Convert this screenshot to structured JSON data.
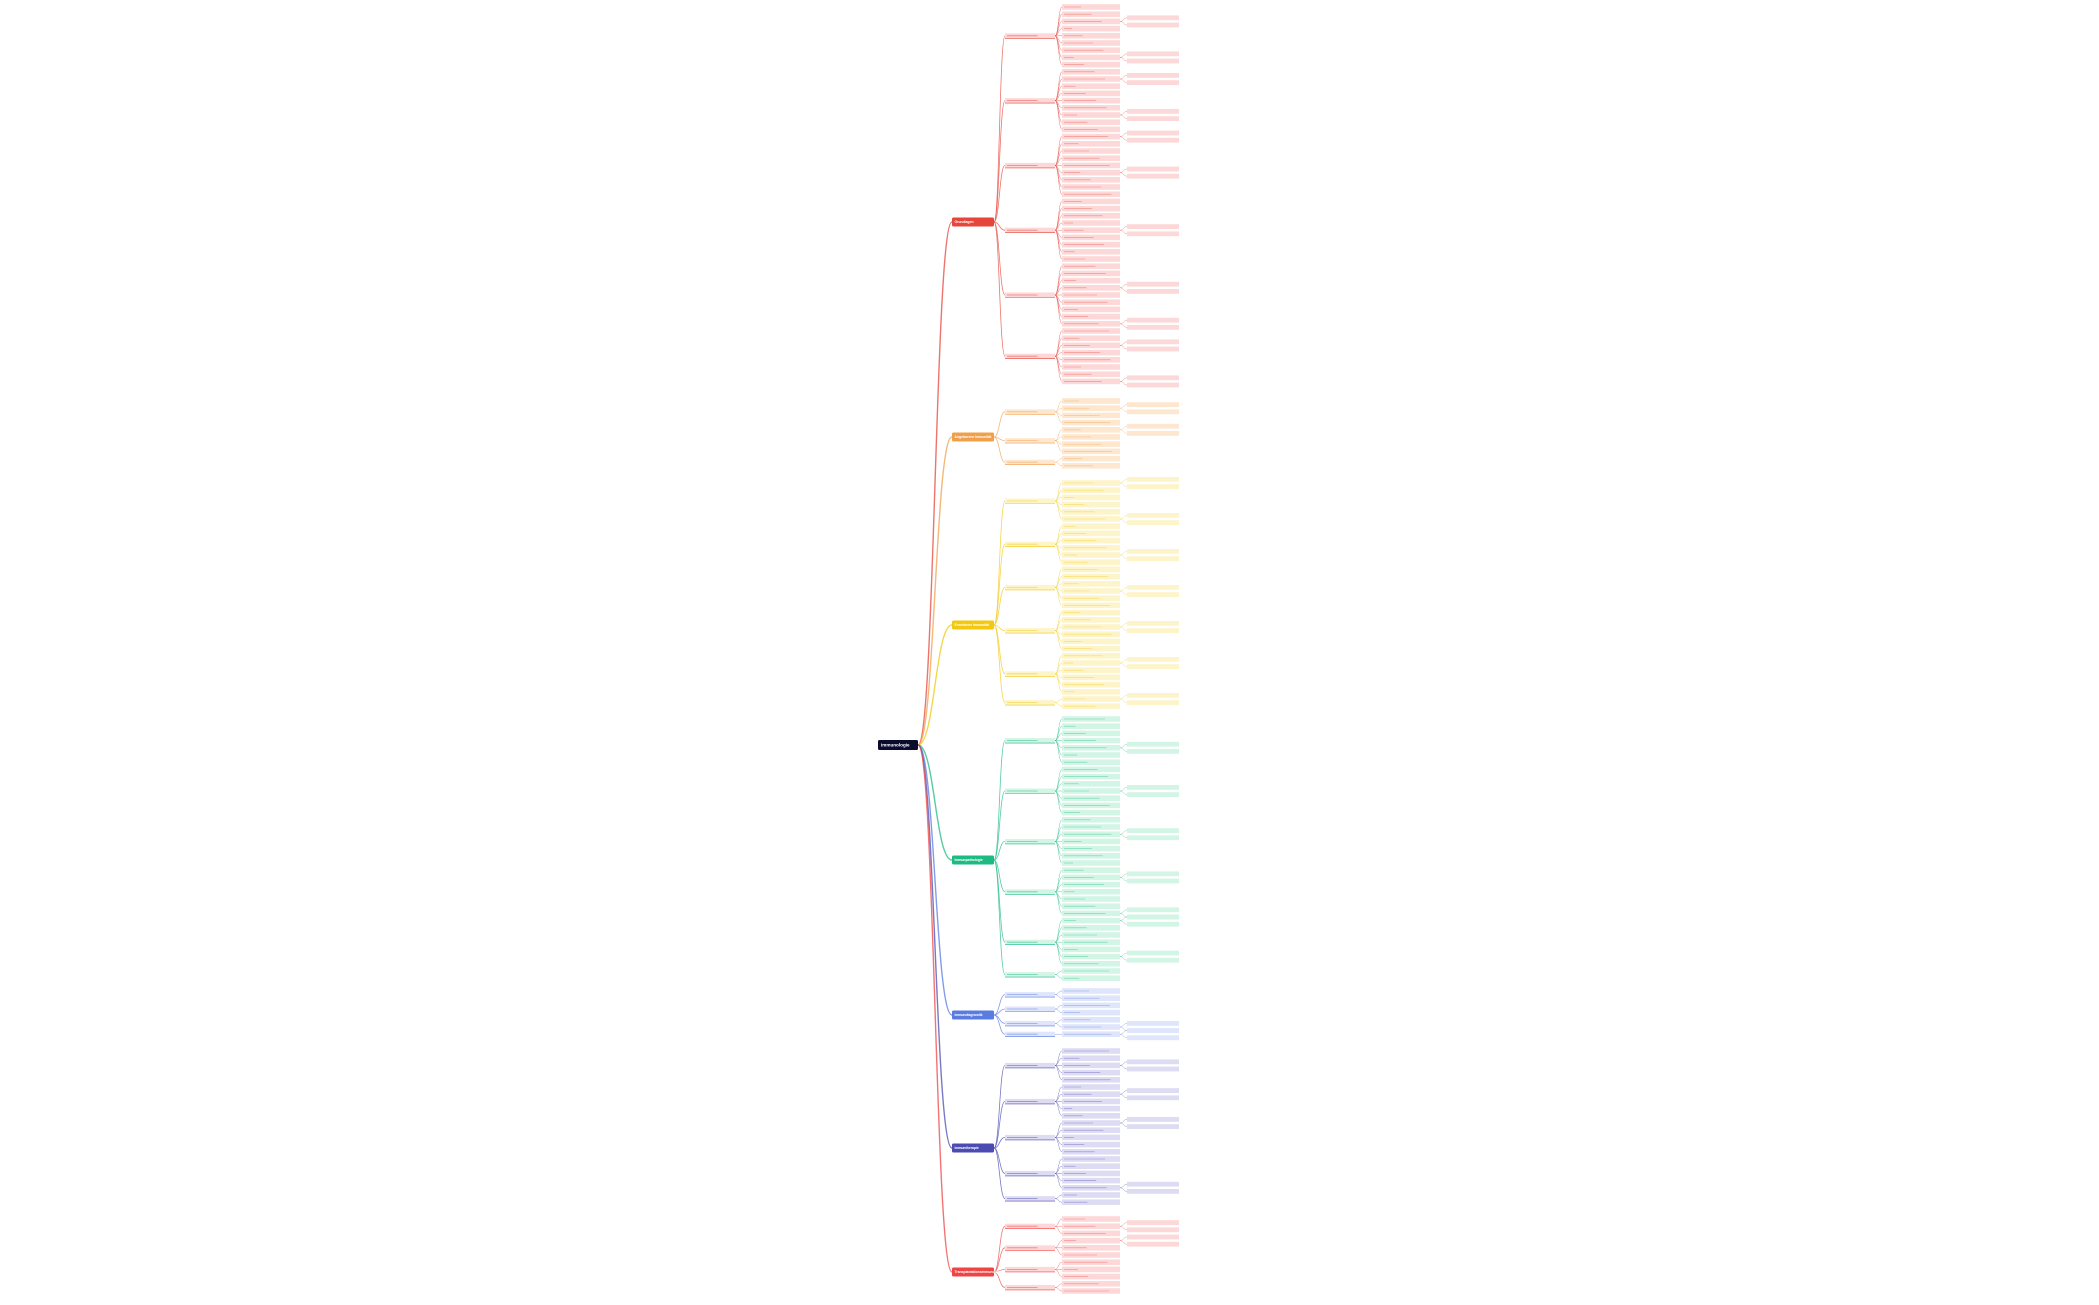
{
  "root": {
    "label": "Immunologie",
    "color": "#0b0b2e"
  },
  "branches": [
    {
      "label": "Grundlagen",
      "color": "#e5453b",
      "light": "#fdd8d8"
    },
    {
      "label": "Angeborene Immunität",
      "color": "#f0a04b",
      "light": "#fde7cf"
    },
    {
      "label": "Erworbene Immunität",
      "color": "#f2c811",
      "light": "#fef4c9"
    },
    {
      "label": "Immunpathologie",
      "color": "#1dbb83",
      "light": "#d3f5e6"
    },
    {
      "label": "Immundiagnostik",
      "color": "#5a7be0",
      "light": "#dfe6fb"
    },
    {
      "label": "Immuntherapie",
      "color": "#4c4bb2",
      "light": "#dedcf3"
    },
    {
      "label": "Transplantationsimmunologie",
      "color": "#ef4444",
      "light": "#fdd8d8"
    }
  ]
}
